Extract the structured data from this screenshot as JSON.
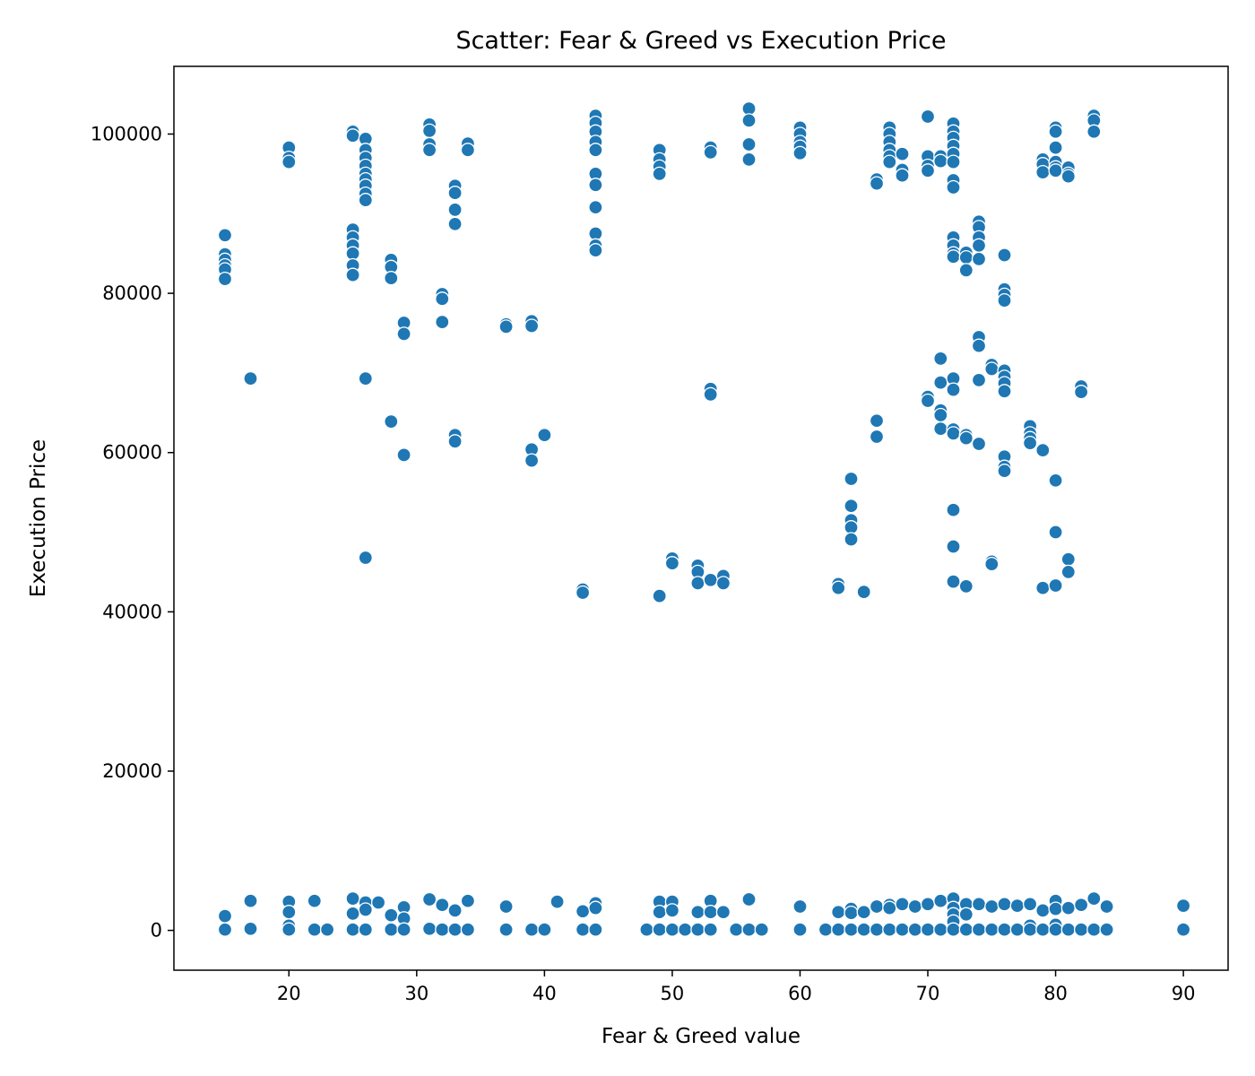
{
  "chart_data": {
    "type": "scatter",
    "title": "Scatter: Fear & Greed vs Execution Price",
    "xlabel": "Fear & Greed value",
    "ylabel": "Execution Price",
    "xlim": [
      11,
      93.5
    ],
    "ylim": [
      -5000,
      108500
    ],
    "xticks": [
      20,
      30,
      40,
      50,
      60,
      70,
      80,
      90
    ],
    "yticks": [
      0,
      20000,
      40000,
      60000,
      80000,
      100000
    ],
    "grid": false,
    "color": "#1f77b4",
    "points": [
      [
        15,
        87300
      ],
      [
        15,
        84900
      ],
      [
        15,
        84200
      ],
      [
        15,
        83500
      ],
      [
        15,
        83000
      ],
      [
        15,
        81800
      ],
      [
        15,
        1800
      ],
      [
        15,
        100
      ],
      [
        17,
        69300
      ],
      [
        17,
        3700
      ],
      [
        17,
        200
      ],
      [
        20,
        98300
      ],
      [
        20,
        97000
      ],
      [
        20,
        96500
      ],
      [
        20,
        3600
      ],
      [
        20,
        2300
      ],
      [
        20,
        600
      ],
      [
        20,
        100
      ],
      [
        22,
        3700
      ],
      [
        22,
        100
      ],
      [
        23,
        100
      ],
      [
        25,
        100300
      ],
      [
        25,
        99800
      ],
      [
        25,
        88000
      ],
      [
        25,
        87000
      ],
      [
        25,
        86000
      ],
      [
        25,
        85000
      ],
      [
        25,
        83500
      ],
      [
        25,
        82300
      ],
      [
        25,
        4000
      ],
      [
        25,
        2100
      ],
      [
        25,
        100
      ],
      [
        26,
        99400
      ],
      [
        26,
        98000
      ],
      [
        26,
        97000
      ],
      [
        26,
        96000
      ],
      [
        26,
        95000
      ],
      [
        26,
        94300
      ],
      [
        26,
        93500
      ],
      [
        26,
        92500
      ],
      [
        26,
        91700
      ],
      [
        26,
        69300
      ],
      [
        26,
        46800
      ],
      [
        26,
        3500
      ],
      [
        26,
        2600
      ],
      [
        26,
        100
      ],
      [
        27,
        3500
      ],
      [
        28,
        84200
      ],
      [
        28,
        83300
      ],
      [
        28,
        81900
      ],
      [
        28,
        63900
      ],
      [
        28,
        1900
      ],
      [
        28,
        100
      ],
      [
        29,
        76300
      ],
      [
        29,
        74900
      ],
      [
        29,
        59700
      ],
      [
        29,
        2900
      ],
      [
        29,
        1500
      ],
      [
        29,
        100
      ],
      [
        31,
        101200
      ],
      [
        31,
        100400
      ],
      [
        31,
        98700
      ],
      [
        31,
        98000
      ],
      [
        31,
        3900
      ],
      [
        31,
        200
      ],
      [
        32,
        79900
      ],
      [
        32,
        79300
      ],
      [
        32,
        76400
      ],
      [
        32,
        3200
      ],
      [
        32,
        100
      ],
      [
        33,
        93500
      ],
      [
        33,
        92600
      ],
      [
        33,
        90500
      ],
      [
        33,
        88700
      ],
      [
        33,
        62200
      ],
      [
        33,
        61400
      ],
      [
        33,
        2500
      ],
      [
        33,
        100
      ],
      [
        34,
        98800
      ],
      [
        34,
        98000
      ],
      [
        34,
        3700
      ],
      [
        34,
        100
      ],
      [
        37,
        76100
      ],
      [
        37,
        75800
      ],
      [
        37,
        3000
      ],
      [
        37,
        100
      ],
      [
        39,
        76500
      ],
      [
        39,
        75900
      ],
      [
        39,
        60400
      ],
      [
        39,
        59000
      ],
      [
        39,
        100
      ],
      [
        40,
        62200
      ],
      [
        40,
        100
      ],
      [
        41,
        3600
      ],
      [
        43,
        42800
      ],
      [
        43,
        42400
      ],
      [
        43,
        2400
      ],
      [
        43,
        100
      ],
      [
        44,
        102300
      ],
      [
        44,
        101400
      ],
      [
        44,
        100300
      ],
      [
        44,
        99000
      ],
      [
        44,
        98000
      ],
      [
        44,
        95000
      ],
      [
        44,
        93600
      ],
      [
        44,
        90800
      ],
      [
        44,
        87500
      ],
      [
        44,
        86000
      ],
      [
        44,
        85400
      ],
      [
        44,
        3400
      ],
      [
        44,
        2800
      ],
      [
        44,
        100
      ],
      [
        48,
        100
      ],
      [
        49,
        98000
      ],
      [
        49,
        96800
      ],
      [
        49,
        95900
      ],
      [
        49,
        95000
      ],
      [
        49,
        42000
      ],
      [
        49,
        3600
      ],
      [
        49,
        2300
      ],
      [
        49,
        100
      ],
      [
        50,
        46700
      ],
      [
        50,
        46100
      ],
      [
        50,
        3600
      ],
      [
        50,
        2500
      ],
      [
        50,
        100
      ],
      [
        51,
        100
      ],
      [
        52,
        45800
      ],
      [
        52,
        45000
      ],
      [
        52,
        43600
      ],
      [
        52,
        2300
      ],
      [
        52,
        100
      ],
      [
        53,
        98300
      ],
      [
        53,
        97700
      ],
      [
        53,
        68000
      ],
      [
        53,
        67300
      ],
      [
        53,
        44000
      ],
      [
        53,
        3700
      ],
      [
        53,
        2300
      ],
      [
        53,
        100
      ],
      [
        54,
        44500
      ],
      [
        54,
        43600
      ],
      [
        54,
        2300
      ],
      [
        55,
        100
      ],
      [
        56,
        103200
      ],
      [
        56,
        101700
      ],
      [
        56,
        98700
      ],
      [
        56,
        96800
      ],
      [
        56,
        3900
      ],
      [
        56,
        100
      ],
      [
        57,
        100
      ],
      [
        60,
        100800
      ],
      [
        60,
        100000
      ],
      [
        60,
        99000
      ],
      [
        60,
        98400
      ],
      [
        60,
        97600
      ],
      [
        60,
        3000
      ],
      [
        60,
        100
      ],
      [
        62,
        100
      ],
      [
        63,
        43500
      ],
      [
        63,
        43000
      ],
      [
        63,
        2300
      ],
      [
        63,
        100
      ],
      [
        64,
        56700
      ],
      [
        64,
        53300
      ],
      [
        64,
        51500
      ],
      [
        64,
        50600
      ],
      [
        64,
        49100
      ],
      [
        64,
        2700
      ],
      [
        64,
        2200
      ],
      [
        64,
        100
      ],
      [
        65,
        42500
      ],
      [
        65,
        2300
      ],
      [
        65,
        100
      ],
      [
        66,
        94300
      ],
      [
        66,
        93800
      ],
      [
        66,
        64000
      ],
      [
        66,
        62000
      ],
      [
        66,
        3000
      ],
      [
        66,
        100
      ],
      [
        67,
        100800
      ],
      [
        67,
        100000
      ],
      [
        67,
        99000
      ],
      [
        67,
        98000
      ],
      [
        67,
        97200
      ],
      [
        67,
        96500
      ],
      [
        67,
        3200
      ],
      [
        67,
        2800
      ],
      [
        67,
        100
      ],
      [
        68,
        97500
      ],
      [
        68,
        95500
      ],
      [
        68,
        94800
      ],
      [
        68,
        3300
      ],
      [
        68,
        100
      ],
      [
        69,
        3000
      ],
      [
        69,
        100
      ],
      [
        70,
        102200
      ],
      [
        70,
        97200
      ],
      [
        70,
        96000
      ],
      [
        70,
        95400
      ],
      [
        70,
        67000
      ],
      [
        70,
        66500
      ],
      [
        70,
        3300
      ],
      [
        70,
        100
      ],
      [
        71,
        97200
      ],
      [
        71,
        96600
      ],
      [
        71,
        71800
      ],
      [
        71,
        68800
      ],
      [
        71,
        65300
      ],
      [
        71,
        64700
      ],
      [
        71,
        63000
      ],
      [
        71,
        3700
      ],
      [
        71,
        100
      ],
      [
        72,
        101300
      ],
      [
        72,
        100300
      ],
      [
        72,
        99500
      ],
      [
        72,
        98500
      ],
      [
        72,
        97500
      ],
      [
        72,
        96500
      ],
      [
        72,
        94200
      ],
      [
        72,
        93300
      ],
      [
        72,
        87000
      ],
      [
        72,
        86000
      ],
      [
        72,
        85000
      ],
      [
        72,
        84600
      ],
      [
        72,
        69300
      ],
      [
        72,
        67900
      ],
      [
        72,
        62900
      ],
      [
        72,
        62400
      ],
      [
        72,
        52800
      ],
      [
        72,
        48200
      ],
      [
        72,
        43800
      ],
      [
        72,
        4000
      ],
      [
        72,
        2800
      ],
      [
        72,
        2000
      ],
      [
        72,
        1100
      ],
      [
        72,
        100
      ],
      [
        73,
        85100
      ],
      [
        73,
        84500
      ],
      [
        73,
        82900
      ],
      [
        73,
        62200
      ],
      [
        73,
        61800
      ],
      [
        73,
        43200
      ],
      [
        73,
        3300
      ],
      [
        73,
        2000
      ],
      [
        73,
        100
      ],
      [
        74,
        89000
      ],
      [
        74,
        88300
      ],
      [
        74,
        87000
      ],
      [
        74,
        86000
      ],
      [
        74,
        84300
      ],
      [
        74,
        74500
      ],
      [
        74,
        73400
      ],
      [
        74,
        69100
      ],
      [
        74,
        61100
      ],
      [
        74,
        3300
      ],
      [
        74,
        100
      ],
      [
        75,
        71000
      ],
      [
        75,
        70500
      ],
      [
        75,
        46300
      ],
      [
        75,
        46000
      ],
      [
        75,
        3000
      ],
      [
        75,
        100
      ],
      [
        76,
        84800
      ],
      [
        76,
        80500
      ],
      [
        76,
        79800
      ],
      [
        76,
        79100
      ],
      [
        76,
        70300
      ],
      [
        76,
        69500
      ],
      [
        76,
        68700
      ],
      [
        76,
        67700
      ],
      [
        76,
        59500
      ],
      [
        76,
        58200
      ],
      [
        76,
        57700
      ],
      [
        76,
        3300
      ],
      [
        76,
        100
      ],
      [
        77,
        3100
      ],
      [
        77,
        100
      ],
      [
        78,
        63300
      ],
      [
        78,
        62400
      ],
      [
        78,
        61800
      ],
      [
        78,
        61200
      ],
      [
        78,
        3300
      ],
      [
        78,
        600
      ],
      [
        78,
        100
      ],
      [
        79,
        96800
      ],
      [
        79,
        96200
      ],
      [
        79,
        95200
      ],
      [
        79,
        60300
      ],
      [
        79,
        43000
      ],
      [
        79,
        2500
      ],
      [
        79,
        100
      ],
      [
        80,
        100800
      ],
      [
        80,
        100300
      ],
      [
        80,
        98300
      ],
      [
        80,
        96500
      ],
      [
        80,
        95800
      ],
      [
        80,
        95400
      ],
      [
        80,
        56500
      ],
      [
        80,
        50000
      ],
      [
        80,
        43300
      ],
      [
        80,
        3700
      ],
      [
        80,
        2700
      ],
      [
        80,
        700
      ],
      [
        80,
        100
      ],
      [
        81,
        95800
      ],
      [
        81,
        95000
      ],
      [
        81,
        94700
      ],
      [
        81,
        46600
      ],
      [
        81,
        45000
      ],
      [
        81,
        2800
      ],
      [
        81,
        100
      ],
      [
        82,
        68300
      ],
      [
        82,
        67600
      ],
      [
        82,
        3200
      ],
      [
        82,
        100
      ],
      [
        83,
        102300
      ],
      [
        83,
        101700
      ],
      [
        83,
        100300
      ],
      [
        83,
        4000
      ],
      [
        83,
        100
      ],
      [
        84,
        3000
      ],
      [
        84,
        100
      ],
      [
        90,
        3100
      ],
      [
        90,
        100
      ]
    ]
  }
}
